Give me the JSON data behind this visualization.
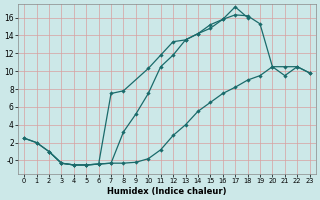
{
  "xlabel": "Humidex (Indice chaleur)",
  "bg_color": "#cce8e8",
  "line_color": "#1a6b6b",
  "grid_color": "#b0d0d0",
  "xlim": [
    -0.5,
    23.5
  ],
  "ylim": [
    -1.5,
    17.5
  ],
  "xticks": [
    0,
    1,
    2,
    3,
    4,
    5,
    6,
    7,
    8,
    9,
    10,
    11,
    12,
    13,
    14,
    15,
    16,
    17,
    18,
    19,
    20,
    21,
    22,
    23
  ],
  "yticks": [
    0,
    2,
    4,
    6,
    8,
    10,
    12,
    14,
    16
  ],
  "ytick_labels": [
    "-0",
    "2",
    "4",
    "6",
    "8",
    "10",
    "12",
    "14",
    "16"
  ],
  "line1_x": [
    0,
    1,
    2,
    3,
    4,
    5,
    6,
    7,
    8,
    9,
    10,
    11,
    12,
    13,
    14,
    15,
    16,
    17,
    18
  ],
  "line1_y": [
    2.5,
    2.0,
    1.0,
    -0.3,
    -0.5,
    -0.5,
    -0.4,
    -0.3,
    3.2,
    5.2,
    7.5,
    10.5,
    11.8,
    13.5,
    14.2,
    15.2,
    15.8,
    17.2,
    16.0
  ],
  "line2_x": [
    0,
    1,
    2,
    3,
    4,
    5,
    6,
    7,
    8,
    10,
    11,
    12,
    13,
    14,
    15,
    16,
    17,
    18,
    19,
    20,
    21,
    22,
    23
  ],
  "line2_y": [
    2.5,
    2.0,
    1.0,
    -0.3,
    -0.5,
    -0.5,
    -0.4,
    7.5,
    7.8,
    10.3,
    11.8,
    13.3,
    13.5,
    14.2,
    14.8,
    15.8,
    16.3,
    16.2,
    15.3,
    10.5,
    9.5,
    10.5,
    9.8
  ],
  "line3_x": [
    2,
    3,
    4,
    5,
    6,
    7,
    8,
    9,
    10,
    11,
    12,
    13,
    14,
    15,
    16,
    17,
    18,
    19,
    20,
    21,
    22,
    23
  ],
  "line3_y": [
    1.0,
    -0.3,
    -0.5,
    -0.5,
    -0.4,
    -0.3,
    -0.3,
    -0.2,
    0.2,
    1.2,
    2.8,
    4.0,
    5.5,
    6.5,
    7.5,
    8.2,
    9.0,
    9.5,
    10.5,
    10.5,
    10.5,
    9.8
  ]
}
